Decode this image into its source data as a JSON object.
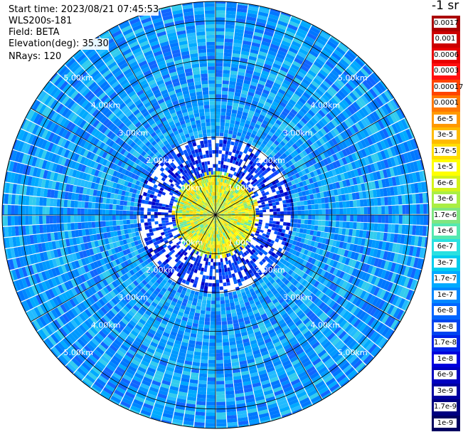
{
  "header": {
    "start_time": "Start time: 2023/08/21 07:45:53",
    "instrument": "WLS200s-181",
    "field": "Field: BETA",
    "elevation": "Elevation(deg): 35.30",
    "nrays": "NRays: 120"
  },
  "colorbar": {
    "units": "-1 sr",
    "labels": [
      "0.0017",
      "0.001",
      "0.0006",
      "0.0003",
      "0.00017",
      "0.0001",
      "6e-5",
      "3e-5",
      "1.7e-5",
      "1e-5",
      "6e-6",
      "3e-6",
      "1.7e-6",
      "1e-6",
      "6e-7",
      "3e-7",
      "1.7e-7",
      "1e-7",
      "6e-8",
      "3e-8",
      "1.7e-8",
      "1e-8",
      "6e-9",
      "3e-9",
      "1.7e-9",
      "1e-9"
    ],
    "colors": [
      "#aa0000",
      "#cc0000",
      "#e80000",
      "#ff1010",
      "#ff4400",
      "#ff7700",
      "#ff9900",
      "#ffbb00",
      "#ffdd00",
      "#ffff00",
      "#d4f21a",
      "#aaee44",
      "#80e680",
      "#55e8b0",
      "#2ae0e0",
      "#00ccee",
      "#00aaff",
      "#0088ff",
      "#0066ff",
      "#0044f0",
      "#0022e8",
      "#0000dd",
      "#0000c0",
      "#0000a0",
      "#000080",
      "#000060"
    ]
  },
  "chart_data": {
    "type": "ppi",
    "nrays": 120,
    "range_rings_km": [
      1,
      2,
      3,
      4,
      5
    ],
    "ring_label_text": [
      "1.00km",
      "2.00km",
      "3.00km",
      "4.00km",
      "5.00km"
    ],
    "max_range_km": 5.5,
    "radial_lines": 12,
    "value_ranges_by_distance": [
      {
        "range_km": [
          0,
          1.0
        ],
        "dominant": "1.7e-5 to 1.7e-6 (yellow-green)"
      },
      {
        "range_km": [
          1.0,
          2.0
        ],
        "dominant": "1.7e-8 to 1e-9 (blue)"
      },
      {
        "range_km": [
          2.0,
          5.5
        ],
        "dominant": "1e-7 to 1.7e-8 (light blue)"
      }
    ]
  }
}
